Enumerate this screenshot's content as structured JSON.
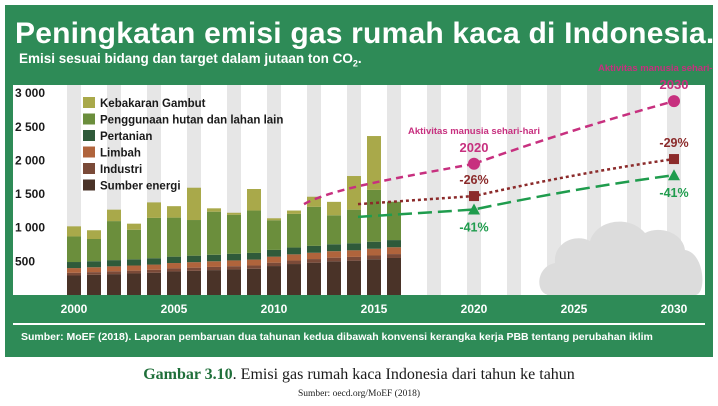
{
  "title": "Peningkatan emisi gas rumah kaca di Indonesia.",
  "subtitle_main": "Emisi sesuai bidang dan target dalam jutaan ton CO",
  "subtitle_sub": "2",
  "subtitle_end": ".",
  "source_line": "Sumber: MoEF (2018). Laporan pembaruan dua tahunan kedua dibawah konvensi kerangka kerja PBB tentang perubahan iklim",
  "caption": {
    "label": "Gambar 3.10",
    "text": ". Emisi gas rumah kaca Indonesia dari tahun ke tahun",
    "source": "Sumber: oecd.org/MoEF (2018)"
  },
  "colors": {
    "frame": "#2e8b57",
    "panel": "#ffffff",
    "stripe": "#e6e6e6",
    "axis_band": "#2e8b57",
    "kebakaran_gambut": "#a9a94a",
    "penggunaan_hutan": "#6b8e3c",
    "pertanian": "#2f5a3a",
    "limbah": "#b0643c",
    "industri": "#7a4a38",
    "sumber_energi": "#4a3328",
    "magenta": "#c7307f",
    "brown_target": "#8b2a2a",
    "green_target": "#1f9c4d",
    "cloud": "#dcdcdc"
  },
  "chart_data": {
    "type": "bar",
    "stacked": true,
    "x": [
      2000,
      2001,
      2002,
      2003,
      2004,
      2005,
      2006,
      2007,
      2008,
      2009,
      2010,
      2011,
      2012,
      2013,
      2014,
      2015,
      2016
    ],
    "xticks": [
      "2000",
      "2005",
      "2010",
      "2015",
      "2020",
      "2025",
      "2030"
    ],
    "xlim": [
      1999.5,
      2031
    ],
    "yticks": [
      "3 000",
      "2 500",
      "2 000",
      "1 500",
      "1 000",
      "500"
    ],
    "ylim": [
      0,
      3000
    ],
    "series": [
      {
        "name": "Sumber energi",
        "key": "sumber_energi",
        "values": [
          290,
          300,
          310,
          320,
          330,
          350,
          360,
          370,
          380,
          390,
          430,
          460,
          480,
          500,
          510,
          530,
          550
        ]
      },
      {
        "name": "Industri",
        "key": "industri",
        "values": [
          40,
          40,
          42,
          42,
          44,
          45,
          46,
          47,
          48,
          48,
          50,
          52,
          54,
          55,
          56,
          57,
          58
        ]
      },
      {
        "name": "Limbah",
        "key": "limbah",
        "values": [
          70,
          72,
          74,
          76,
          78,
          80,
          82,
          84,
          86,
          88,
          90,
          92,
          94,
          96,
          98,
          100,
          102
        ]
      },
      {
        "name": "Pertanian",
        "key": "pertanian",
        "values": [
          90,
          90,
          92,
          92,
          94,
          95,
          96,
          97,
          98,
          99,
          100,
          101,
          102,
          103,
          104,
          105,
          106
        ]
      },
      {
        "name": "Penggunaan hutan dan lahan lain",
        "key": "penggunaan_hutan",
        "values": [
          380,
          330,
          580,
          440,
          600,
          580,
          530,
          640,
          580,
          630,
          440,
          500,
          580,
          430,
          500,
          770,
          570
        ]
      },
      {
        "name": "Kebakaran Gambut",
        "key": "kebakaran_gambut",
        "values": [
          150,
          130,
          170,
          90,
          230,
          170,
          480,
          50,
          30,
          320,
          30,
          50,
          150,
          200,
          500,
          800,
          0
        ]
      }
    ],
    "targets": [
      {
        "name": "Aktivitas manusia sehari-hari",
        "color_key": "magenta",
        "marker": "circle",
        "points": [
          {
            "x": 2020,
            "y": 1950,
            "label": "2020"
          },
          {
            "x": 2030,
            "y": 2880,
            "label": "2030"
          }
        ],
        "label": "Aktivitas manusia sehari-hari"
      },
      {
        "name": "-26% / -29%",
        "color_key": "brown_target",
        "marker": "square",
        "points": [
          {
            "x": 2020,
            "y": 1470,
            "label": "-26%"
          },
          {
            "x": 2030,
            "y": 2020,
            "label": "-29%"
          }
        ]
      },
      {
        "name": "-41%",
        "color_key": "green_target",
        "marker": "triangle",
        "points": [
          {
            "x": 2020,
            "y": 1270,
            "label": "-41%"
          },
          {
            "x": 2030,
            "y": 1780,
            "label": "-41%"
          }
        ]
      }
    ]
  }
}
